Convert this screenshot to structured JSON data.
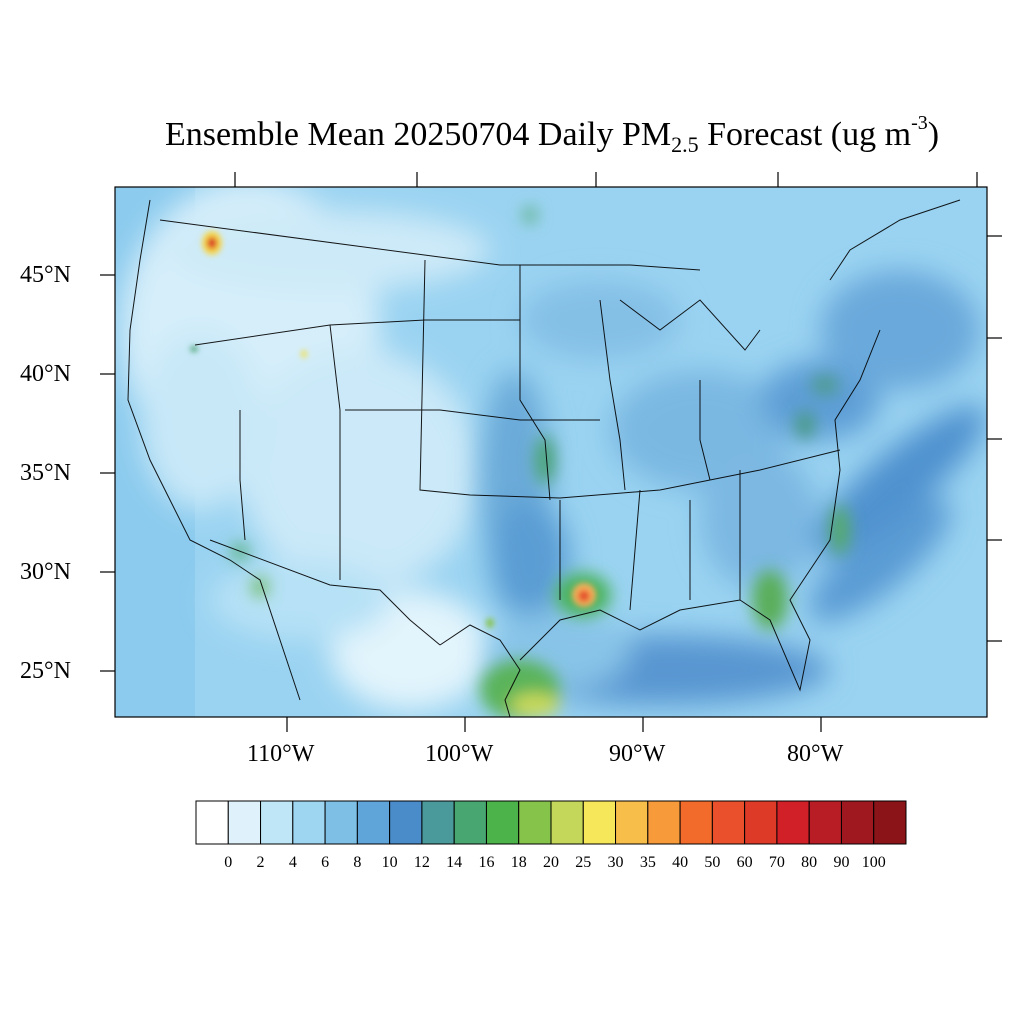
{
  "title": {
    "prefix": "Ensemble Mean 20250704 Daily PM",
    "subscript": "2.5",
    "middle": " Forecast (ug m",
    "superscript": "-3",
    "suffix": ")"
  },
  "lat_labels": [
    "45°N",
    "40°N",
    "35°N",
    "30°N",
    "25°N"
  ],
  "lon_labels": [
    "110°W",
    "100°W",
    "90°W",
    "80°W"
  ],
  "colorbar": {
    "labels": [
      "0",
      "2",
      "4",
      "6",
      "8",
      "10",
      "12",
      "14",
      "16",
      "18",
      "20",
      "25",
      "30",
      "35",
      "40",
      "50",
      "60",
      "70",
      "80",
      "90",
      "100"
    ],
    "colors": [
      "#ffffff",
      "#dff2fb",
      "#bfe6f6",
      "#9ed6f2",
      "#7ebfe6",
      "#5fa5d9",
      "#4a8bc9",
      "#4a9a9c",
      "#48a670",
      "#4cb34a",
      "#86c34b",
      "#c5d75a",
      "#f6e659",
      "#f8be4a",
      "#f79a3a",
      "#f36b2a",
      "#e9502b",
      "#de3a28",
      "#d22029",
      "#b81c24",
      "#a0181f",
      "#8b1419"
    ]
  },
  "map": {
    "background_color": "#8fcff0",
    "land_base_color": "#a8dcf4"
  }
}
